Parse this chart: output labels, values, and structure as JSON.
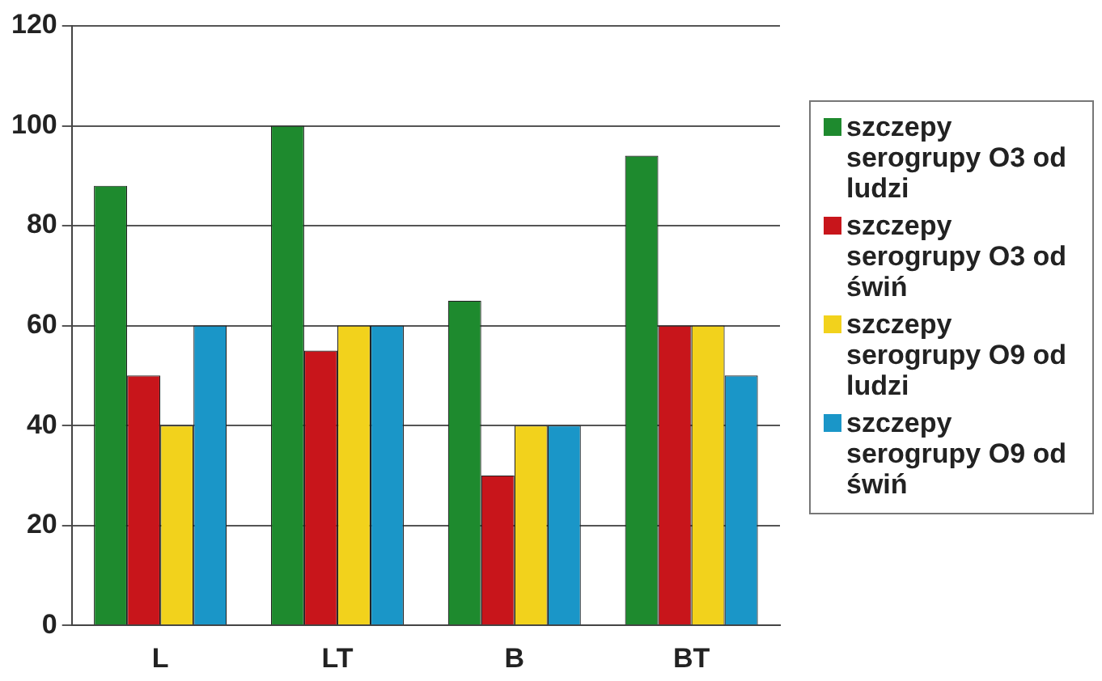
{
  "chart_data": {
    "type": "bar",
    "categories": [
      "L",
      "LT",
      "B",
      "BT"
    ],
    "series": [
      {
        "name": "szczepy serogrupy O3 od ludzi",
        "color": "#1e8a2e",
        "values": [
          88,
          100,
          65,
          94
        ]
      },
      {
        "name": "szczepy serogrupy O3 od świń",
        "color": "#c8151b",
        "values": [
          50,
          55,
          30,
          60
        ]
      },
      {
        "name": "szczepy serogrupy O9 od ludzi",
        "color": "#f2d21c",
        "values": [
          40,
          60,
          40,
          60
        ]
      },
      {
        "name": "szczepy serogrupy O9 od świń",
        "color": "#1a96c8",
        "values": [
          60,
          60,
          40,
          50
        ]
      }
    ],
    "ylim": [
      0,
      120
    ],
    "yticks": [
      0,
      20,
      40,
      60,
      80,
      100,
      120
    ],
    "grid": "y",
    "legend": "right"
  }
}
